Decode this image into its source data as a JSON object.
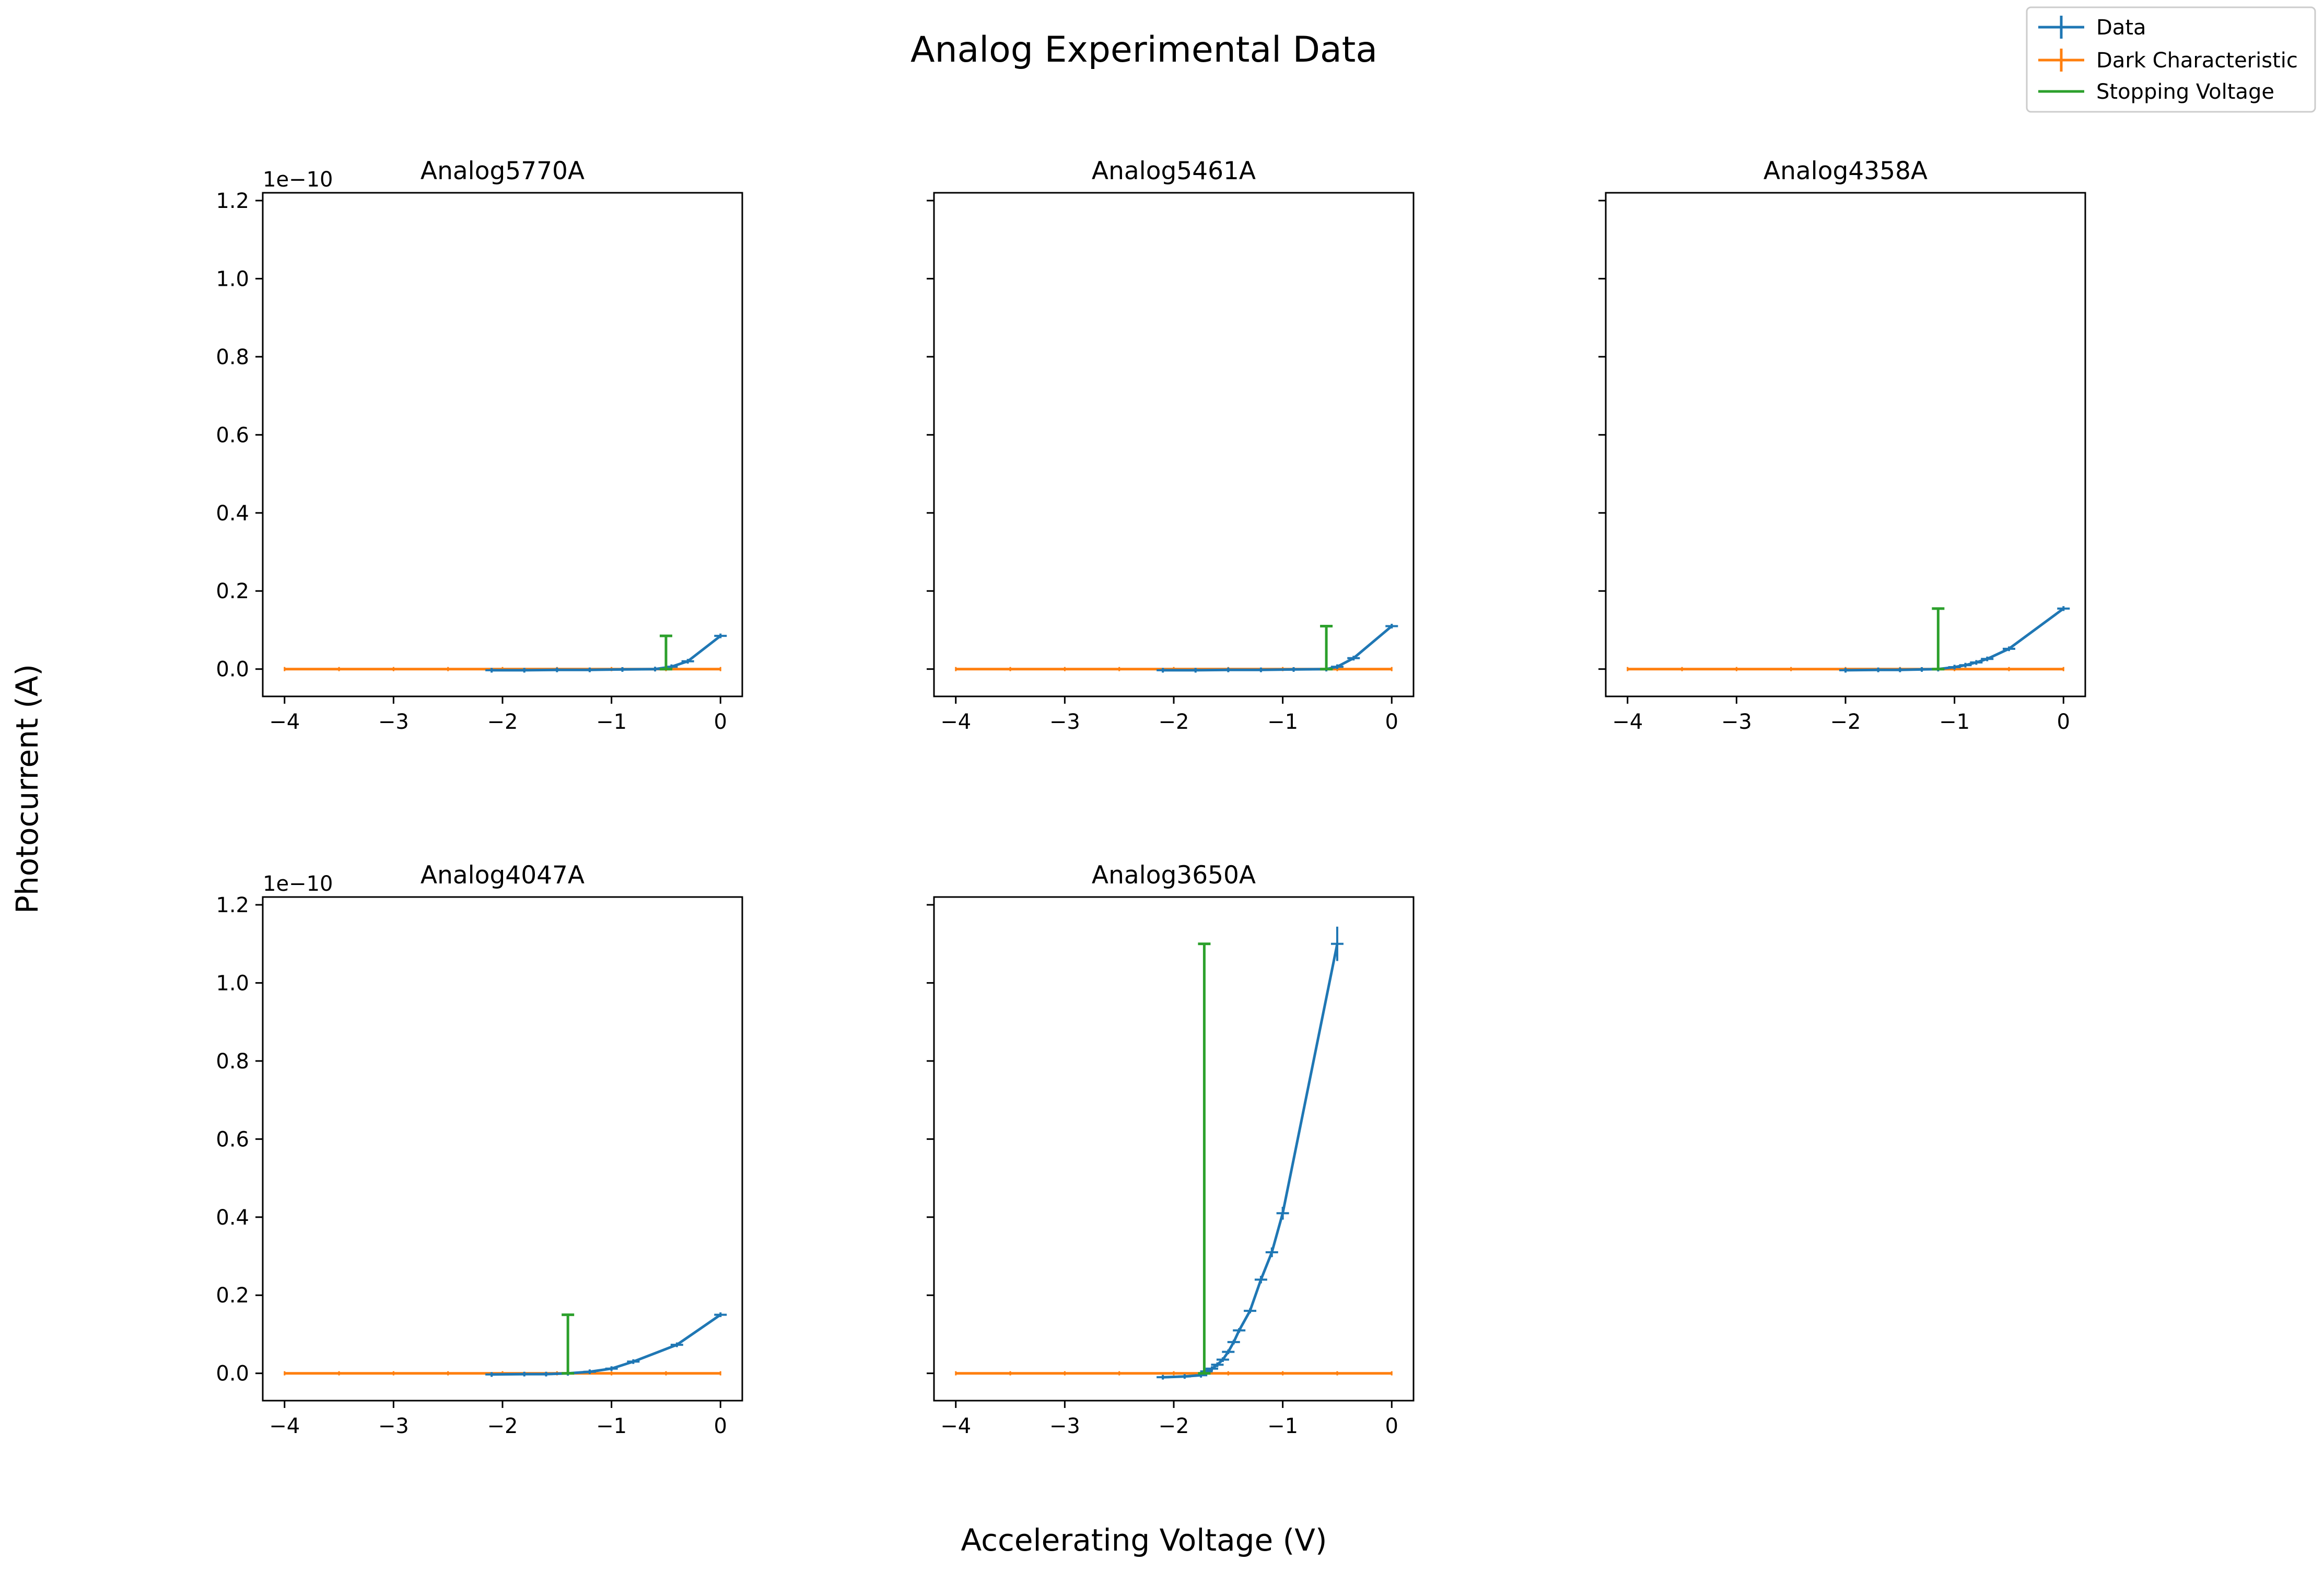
{
  "figure": {
    "title": "Analog Experimental Data",
    "xlabel": "Accelerating Voltage (V)",
    "ylabel": "Photocurrent (A)"
  },
  "legend": {
    "placement": "top-right",
    "entries": [
      {
        "label": "Data",
        "color": "#1f77b4",
        "marker": "errorbar"
      },
      {
        "label": "Dark Characteristic",
        "color": "#ff7f0e",
        "marker": "errorbar"
      },
      {
        "label": "Stopping Voltage",
        "color": "#2ca02c",
        "marker": "line"
      }
    ]
  },
  "colors": {
    "data": "#1f77b4",
    "dark": "#ff7f0e",
    "stopping": "#2ca02c"
  },
  "chart_data": [
    {
      "type": "line",
      "title": "Analog5770A",
      "xlim": [
        -4.2,
        0.2
      ],
      "ylim": [
        -0.07,
        1.22
      ],
      "y_offset_label": "1e−10",
      "show_y_ticklabels": true,
      "xticks": [
        -4,
        -3,
        -2,
        -1,
        0
      ],
      "xtick_labels": [
        "−4",
        "−3",
        "−2",
        "−1",
        "0"
      ],
      "yticks": [
        0.0,
        0.2,
        0.4,
        0.6,
        0.8,
        1.0,
        1.2
      ],
      "ytick_labels": [
        "0.0",
        "0.2",
        "0.4",
        "0.6",
        "0.8",
        "1.0",
        "1.2"
      ],
      "series": [
        {
          "name": "Data",
          "x": [
            -2.1,
            -1.8,
            -1.5,
            -1.2,
            -0.9,
            -0.6,
            -0.45,
            -0.3,
            0.0
          ],
          "y": [
            -0.003,
            -0.003,
            -0.002,
            -0.002,
            -0.001,
            0.0,
            0.006,
            0.02,
            0.085
          ]
        },
        {
          "name": "Dark Characteristic",
          "x": [
            -4.0,
            0.0
          ],
          "y": [
            0.0,
            0.0
          ]
        }
      ],
      "stopping_voltage": {
        "x": -0.5,
        "y0": 0.0,
        "y1": 0.085
      }
    },
    {
      "type": "line",
      "title": "Analog5461A",
      "xlim": [
        -4.2,
        0.2
      ],
      "ylim": [
        -0.07,
        1.22
      ],
      "y_offset_label": "",
      "show_y_ticklabels": false,
      "xticks": [
        -4,
        -3,
        -2,
        -1,
        0
      ],
      "xtick_labels": [
        "−4",
        "−3",
        "−2",
        "−1",
        "0"
      ],
      "yticks": [
        0.0,
        0.2,
        0.4,
        0.6,
        0.8,
        1.0,
        1.2
      ],
      "ytick_labels": [],
      "series": [
        {
          "name": "Data",
          "x": [
            -2.1,
            -1.8,
            -1.5,
            -1.2,
            -0.9,
            -0.6,
            -0.5,
            -0.35,
            0.0
          ],
          "y": [
            -0.003,
            -0.003,
            -0.002,
            -0.002,
            -0.001,
            0.0,
            0.006,
            0.028,
            0.11
          ]
        },
        {
          "name": "Dark Characteristic",
          "x": [
            -4.0,
            0.0
          ],
          "y": [
            0.0,
            0.0
          ]
        }
      ],
      "stopping_voltage": {
        "x": -0.6,
        "y0": 0.0,
        "y1": 0.11
      }
    },
    {
      "type": "line",
      "title": "Analog4358A",
      "xlim": [
        -4.2,
        0.2
      ],
      "ylim": [
        -0.07,
        1.22
      ],
      "y_offset_label": "",
      "show_y_ticklabels": false,
      "xticks": [
        -4,
        -3,
        -2,
        -1,
        0
      ],
      "xtick_labels": [
        "−4",
        "−3",
        "−2",
        "−1",
        "0"
      ],
      "yticks": [
        0.0,
        0.2,
        0.4,
        0.6,
        0.8,
        1.0,
        1.2
      ],
      "ytick_labels": [],
      "series": [
        {
          "name": "Data",
          "x": [
            -2.0,
            -1.7,
            -1.5,
            -1.3,
            -1.15,
            -1.0,
            -0.9,
            -0.8,
            -0.7,
            -0.5,
            0.0
          ],
          "y": [
            -0.003,
            -0.002,
            -0.002,
            -0.001,
            0.0,
            0.005,
            0.01,
            0.017,
            0.026,
            0.052,
            0.155
          ]
        },
        {
          "name": "Dark Characteristic",
          "x": [
            -4.0,
            0.0
          ],
          "y": [
            0.0,
            0.0
          ]
        }
      ],
      "stopping_voltage": {
        "x": -1.15,
        "y0": 0.0,
        "y1": 0.155
      }
    },
    {
      "type": "line",
      "title": "Analog4047A",
      "xlim": [
        -4.2,
        0.2
      ],
      "ylim": [
        -0.07,
        1.22
      ],
      "y_offset_label": "1e−10",
      "show_y_ticklabels": true,
      "xticks": [
        -4,
        -3,
        -2,
        -1,
        0
      ],
      "xtick_labels": [
        "−4",
        "−3",
        "−2",
        "−1",
        "0"
      ],
      "yticks": [
        0.0,
        0.2,
        0.4,
        0.6,
        0.8,
        1.0,
        1.2
      ],
      "ytick_labels": [
        "0.0",
        "0.2",
        "0.4",
        "0.6",
        "0.8",
        "1.0",
        "1.2"
      ],
      "series": [
        {
          "name": "Data",
          "x": [
            -2.1,
            -1.8,
            -1.6,
            -1.4,
            -1.2,
            -1.0,
            -0.8,
            -0.4,
            0.0
          ],
          "y": [
            -0.003,
            -0.002,
            -0.002,
            0.0,
            0.004,
            0.012,
            0.03,
            0.073,
            0.15
          ]
        },
        {
          "name": "Dark Characteristic",
          "x": [
            -4.0,
            0.0
          ],
          "y": [
            0.0,
            0.0
          ]
        }
      ],
      "stopping_voltage": {
        "x": -1.4,
        "y0": 0.0,
        "y1": 0.15
      }
    },
    {
      "type": "line",
      "title": "Analog3650A",
      "xlim": [
        -4.2,
        0.2
      ],
      "ylim": [
        -0.07,
        1.22
      ],
      "y_offset_label": "",
      "show_y_ticklabels": false,
      "xticks": [
        -4,
        -3,
        -2,
        -1,
        0
      ],
      "xtick_labels": [
        "−4",
        "−3",
        "−2",
        "−1",
        "0"
      ],
      "yticks": [
        0.0,
        0.2,
        0.4,
        0.6,
        0.8,
        1.0,
        1.2
      ],
      "ytick_labels": [],
      "series": [
        {
          "name": "Data",
          "x": [
            -2.1,
            -1.9,
            -1.75,
            -1.7,
            -1.65,
            -1.6,
            -1.55,
            -1.5,
            -1.45,
            -1.4,
            -1.3,
            -1.2,
            -1.1,
            -1.0,
            -0.5
          ],
          "y": [
            -0.01,
            -0.008,
            -0.005,
            0.005,
            0.012,
            0.022,
            0.035,
            0.055,
            0.08,
            0.11,
            0.16,
            0.24,
            0.31,
            0.41,
            1.1
          ]
        },
        {
          "name": "Dark Characteristic",
          "x": [
            -4.0,
            0.0
          ],
          "y": [
            0.0,
            0.0
          ]
        }
      ],
      "stopping_voltage": {
        "x": -1.72,
        "y0": 0.0,
        "y1": 1.1
      }
    }
  ]
}
